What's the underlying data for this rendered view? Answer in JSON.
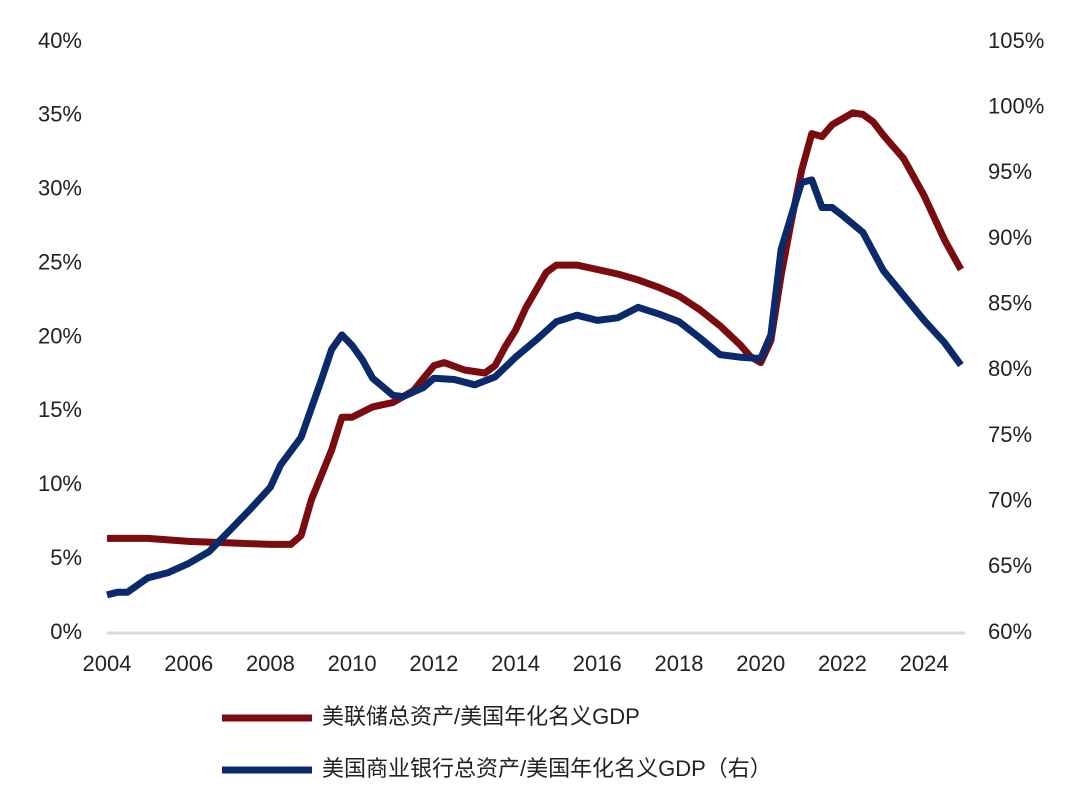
{
  "chart_data": {
    "type": "line",
    "xlim": [
      2004,
      2025
    ],
    "xticks": [
      2004,
      2006,
      2008,
      2010,
      2012,
      2014,
      2016,
      2018,
      2020,
      2022,
      2024
    ],
    "ylim": [
      0,
      40
    ],
    "yticks": [
      {
        "value": 0,
        "label": "0%"
      },
      {
        "value": 5,
        "label": "5%"
      },
      {
        "value": 10,
        "label": "10%"
      },
      {
        "value": 15,
        "label": "15%"
      },
      {
        "value": 20,
        "label": "20%"
      },
      {
        "value": 25,
        "label": "25%"
      },
      {
        "value": 30,
        "label": "30%"
      },
      {
        "value": 35,
        "label": "35%"
      },
      {
        "value": 40,
        "label": "40%"
      }
    ],
    "y2lim": [
      60,
      105
    ],
    "y2ticks": [
      {
        "value": 60,
        "label": "60%"
      },
      {
        "value": 65,
        "label": "65%"
      },
      {
        "value": 70,
        "label": "70%"
      },
      {
        "value": 75,
        "label": "75%"
      },
      {
        "value": 80,
        "label": "80%"
      },
      {
        "value": 85,
        "label": "85%"
      },
      {
        "value": 90,
        "label": "90%"
      },
      {
        "value": 95,
        "label": "95%"
      },
      {
        "value": 100,
        "label": "100%"
      },
      {
        "value": 105,
        "label": "105%"
      }
    ],
    "grid": false,
    "series": [
      {
        "name": "美联储总资产/美国年化名义GDP",
        "color": "#7a0c10",
        "x": [
          2004,
          2005,
          2006,
          2007,
          2008,
          2008.5,
          2008.75,
          2009,
          2009.5,
          2009.75,
          2010,
          2010.5,
          2011,
          2011.5,
          2012,
          2012.25,
          2012.75,
          2013.25,
          2013.5,
          2013.75,
          2014,
          2014.25,
          2014.5,
          2014.75,
          2015,
          2015.5,
          2016,
          2016.5,
          2017,
          2017.5,
          2018,
          2018.5,
          2019,
          2019.5,
          2019.75,
          2020,
          2020.25,
          2020.5,
          2020.75,
          2021,
          2021.25,
          2021.5,
          2021.75,
          2022,
          2022.25,
          2022.5,
          2022.75,
          2023,
          2023.5,
          2024,
          2024.5,
          2024.9
        ],
        "values": [
          6.4,
          6.4,
          6.2,
          6.1,
          6.0,
          6.0,
          6.6,
          9.0,
          12.4,
          14.6,
          14.6,
          15.3,
          15.6,
          16.4,
          18.1,
          18.3,
          17.8,
          17.6,
          18.1,
          19.4,
          20.5,
          22.0,
          23.2,
          24.4,
          24.9,
          24.9,
          24.6,
          24.3,
          23.9,
          23.4,
          22.8,
          21.9,
          20.8,
          19.5,
          18.7,
          18.3,
          19.8,
          24.2,
          27.9,
          31.3,
          33.8,
          33.6,
          34.4,
          34.8,
          35.2,
          35.1,
          34.6,
          33.7,
          32.1,
          29.6,
          26.6,
          24.6
        ]
      },
      {
        "name": "美国商业银行总资产/美国年化名义GDP（右）",
        "color": "#0b2a6b",
        "axis": "y2",
        "x": [
          2004,
          2004.25,
          2004.5,
          2005,
          2005.5,
          2006,
          2006.5,
          2007,
          2007.5,
          2008,
          2008.25,
          2008.75,
          2009,
          2009.25,
          2009.5,
          2009.75,
          2010,
          2010.25,
          2010.5,
          2011,
          2011.25,
          2011.75,
          2012,
          2012.5,
          2013,
          2013.5,
          2014,
          2014.5,
          2015,
          2015.5,
          2016,
          2016.5,
          2017,
          2017.5,
          2018,
          2018.5,
          2019,
          2019.5,
          2020,
          2020.25,
          2020.5,
          2020.75,
          2021,
          2021.25,
          2021.5,
          2021.75,
          2022,
          2022.5,
          2023,
          2023.5,
          2024,
          2024.5,
          2024.9
        ],
        "values": [
          62.9,
          63.1,
          63.1,
          64.2,
          64.6,
          65.3,
          66.2,
          67.8,
          69.4,
          71.1,
          72.8,
          74.9,
          77.1,
          79.3,
          81.6,
          82.7,
          81.9,
          80.8,
          79.4,
          78.1,
          78.0,
          78.7,
          79.4,
          79.3,
          78.9,
          79.5,
          81.0,
          82.3,
          83.7,
          84.2,
          83.8,
          84.0,
          84.8,
          84.3,
          83.7,
          82.5,
          81.2,
          81.0,
          80.9,
          82.7,
          89.2,
          91.8,
          94.3,
          94.5,
          92.4,
          92.4,
          91.8,
          90.5,
          87.6,
          85.7,
          83.8,
          82.1,
          80.4
        ]
      }
    ]
  }
}
